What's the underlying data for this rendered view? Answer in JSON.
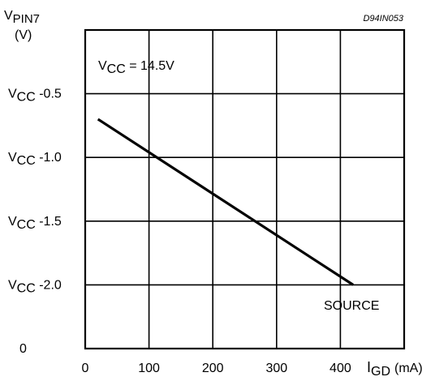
{
  "chart_data": {
    "type": "line",
    "title": "",
    "figure_code": "D94IN053",
    "ylabel": {
      "main": "V",
      "sub": "PIN7",
      "unit": "(V)"
    },
    "xlabel": {
      "main": "I",
      "sub": "GD",
      "unit": "(mA)"
    },
    "x_ticks": [
      "0",
      "100",
      "200",
      "300",
      "400"
    ],
    "y_ticks": [
      {
        "value": 0,
        "main": "",
        "prefix": "",
        "text": "0"
      },
      {
        "value": -2.0,
        "main": "V",
        "prefix": "CC",
        "text": " -2.0"
      },
      {
        "value": -1.5,
        "main": "V",
        "prefix": "CC",
        "text": " -1.5"
      },
      {
        "value": -1.0,
        "main": "V",
        "prefix": "CC",
        "text": " -1.0"
      },
      {
        "value": -0.5,
        "main": "V",
        "prefix": "CC",
        "text": " -0.5"
      }
    ],
    "xlim": [
      0,
      500
    ],
    "ylim": [
      -2.5,
      0
    ],
    "grid": true,
    "annotation": {
      "main": "V",
      "sub": "CC",
      "text": " = 14.5V"
    },
    "series_label": "SOURCE",
    "series": [
      {
        "x": [
          20,
          420
        ],
        "y": [
          -0.7,
          -2.0
        ]
      }
    ]
  }
}
